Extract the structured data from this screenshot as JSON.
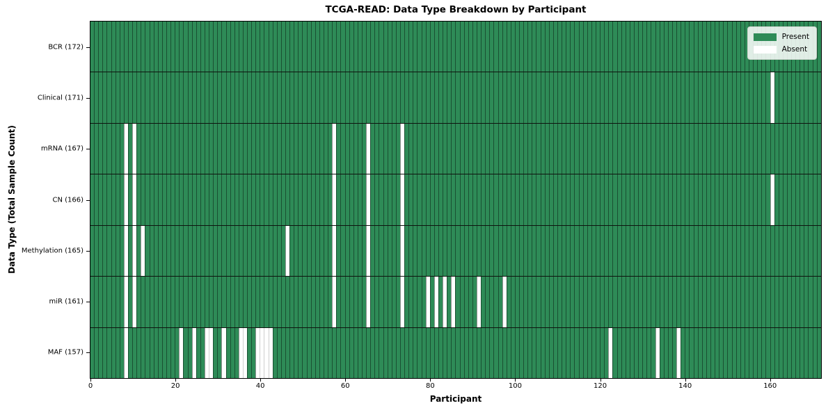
{
  "chart_data": {
    "type": "heatmap",
    "title": "TCGA-READ: Data Type Breakdown by Participant",
    "xlabel": "Participant",
    "ylabel": "Data Type (Total Sample Count)",
    "n_participants": 172,
    "x_ticks": [
      0,
      20,
      40,
      60,
      80,
      100,
      120,
      140,
      160
    ],
    "xlim": [
      0,
      172
    ],
    "grid": "cell-borders",
    "legend_position": "upper-right-inside",
    "legend": [
      {
        "label": "Present",
        "color": "#2e8b57"
      },
      {
        "label": "Absent",
        "color": "#ffffff"
      }
    ],
    "colors": {
      "present": "#2e8b57",
      "absent": "#ffffff",
      "cell_border": "rgba(0,0,0,0.42)",
      "row_border": "#0e130e",
      "axes_border": "#000000"
    },
    "rows": [
      {
        "label": "BCR (172)",
        "name": "BCR",
        "total_samples": 172,
        "absent_participants": []
      },
      {
        "label": "Clinical (171)",
        "name": "Clinical",
        "total_samples": 171,
        "absent_participants": [
          160
        ]
      },
      {
        "label": "mRNA (167)",
        "name": "mRNA",
        "total_samples": 167,
        "absent_participants": [
          8,
          10,
          57,
          65,
          73
        ]
      },
      {
        "label": "CN (166)",
        "name": "CN",
        "total_samples": 166,
        "absent_participants": [
          8,
          10,
          57,
          65,
          73,
          160
        ]
      },
      {
        "label": "Methylation (165)",
        "name": "Methylation",
        "total_samples": 165,
        "absent_participants": [
          8,
          10,
          12,
          46,
          57,
          65,
          73
        ]
      },
      {
        "label": "miR (161)",
        "name": "miR",
        "total_samples": 161,
        "absent_participants": [
          8,
          10,
          57,
          65,
          73,
          79,
          81,
          83,
          85,
          91,
          97
        ]
      },
      {
        "label": "MAF (157)",
        "name": "MAF",
        "total_samples": 157,
        "absent_participants": [
          8,
          21,
          24,
          27,
          28,
          31,
          35,
          36,
          39,
          40,
          41,
          42,
          122,
          133,
          138
        ]
      }
    ]
  }
}
